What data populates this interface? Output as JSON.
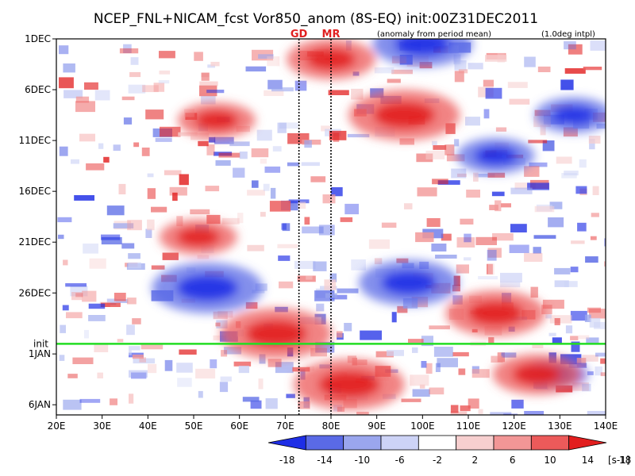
{
  "colors": {
    "neg_strong": "#1e2ee6",
    "neg_mid": "#5a6ae6",
    "neg_light": "#9aa6ee",
    "neg_pale": "#cdd3f6",
    "neutral": "#ffffff",
    "pos_pale": "#f7cfcf",
    "pos_light": "#f29696",
    "pos_mid": "#ec5a5a",
    "pos_strong": "#e21e1e",
    "marker": "#e02020",
    "init_line": "#22dd22"
  },
  "chart_data": {
    "type": "heatmap",
    "title": "NCEP_FNL+NICAM_fcst Vor850_anom (8S-EQ) init:00Z31DEC2011",
    "annotation_left": "(anomaly from period mean)",
    "annotation_right": "(1.0deg intpl)",
    "x_ticks": [
      "20E",
      "30E",
      "40E",
      "50E",
      "60E",
      "70E",
      "80E",
      "90E",
      "100E",
      "110E",
      "120E",
      "130E",
      "140E"
    ],
    "x_range_deg_east": [
      20,
      140
    ],
    "y_ticks": [
      "1DEC",
      "6DEC",
      "11DEC",
      "16DEC",
      "21DEC",
      "26DEC",
      "1JAN",
      "6JAN"
    ],
    "y_range_days_after_1DEC": [
      0,
      37
    ],
    "init_label": "init",
    "init_day_after_1DEC": 30,
    "markers": [
      {
        "label": "GD",
        "lon": 73
      },
      {
        "label": "MR",
        "lon": 80
      }
    ],
    "colorbar": {
      "levels": [
        "-18",
        "-14",
        "-10",
        "-6",
        "-2",
        "2",
        "6",
        "10",
        "14",
        "18"
      ],
      "unit": "[s-1]"
    },
    "features": [
      {
        "kind": "negative",
        "lon": 53,
        "day": 24.5,
        "strength": 1.0
      },
      {
        "kind": "negative",
        "lon": 97,
        "day": 24.0,
        "strength": 0.9
      },
      {
        "kind": "negative",
        "lon": 116,
        "day": 11.5,
        "strength": 0.7
      },
      {
        "kind": "negative",
        "lon": 133,
        "day": 7.5,
        "strength": 0.7
      },
      {
        "kind": "negative",
        "lon": 129,
        "day": 33.0,
        "strength": 0.6
      },
      {
        "kind": "negative",
        "lon": 100,
        "day": 0.5,
        "strength": 0.9
      },
      {
        "kind": "positive",
        "lon": 96,
        "day": 7.5,
        "strength": 1.0
      },
      {
        "kind": "positive",
        "lon": 55,
        "day": 8.0,
        "strength": 0.7
      },
      {
        "kind": "positive",
        "lon": 51,
        "day": 19.5,
        "strength": 0.7
      },
      {
        "kind": "positive",
        "lon": 68,
        "day": 29.0,
        "strength": 1.0
      },
      {
        "kind": "positive",
        "lon": 84,
        "day": 34.0,
        "strength": 1.0
      },
      {
        "kind": "positive",
        "lon": 116,
        "day": 27.0,
        "strength": 0.9
      },
      {
        "kind": "positive",
        "lon": 125,
        "day": 33.0,
        "strength": 0.8
      },
      {
        "kind": "positive",
        "lon": 80,
        "day": 2.0,
        "strength": 0.8
      }
    ]
  }
}
